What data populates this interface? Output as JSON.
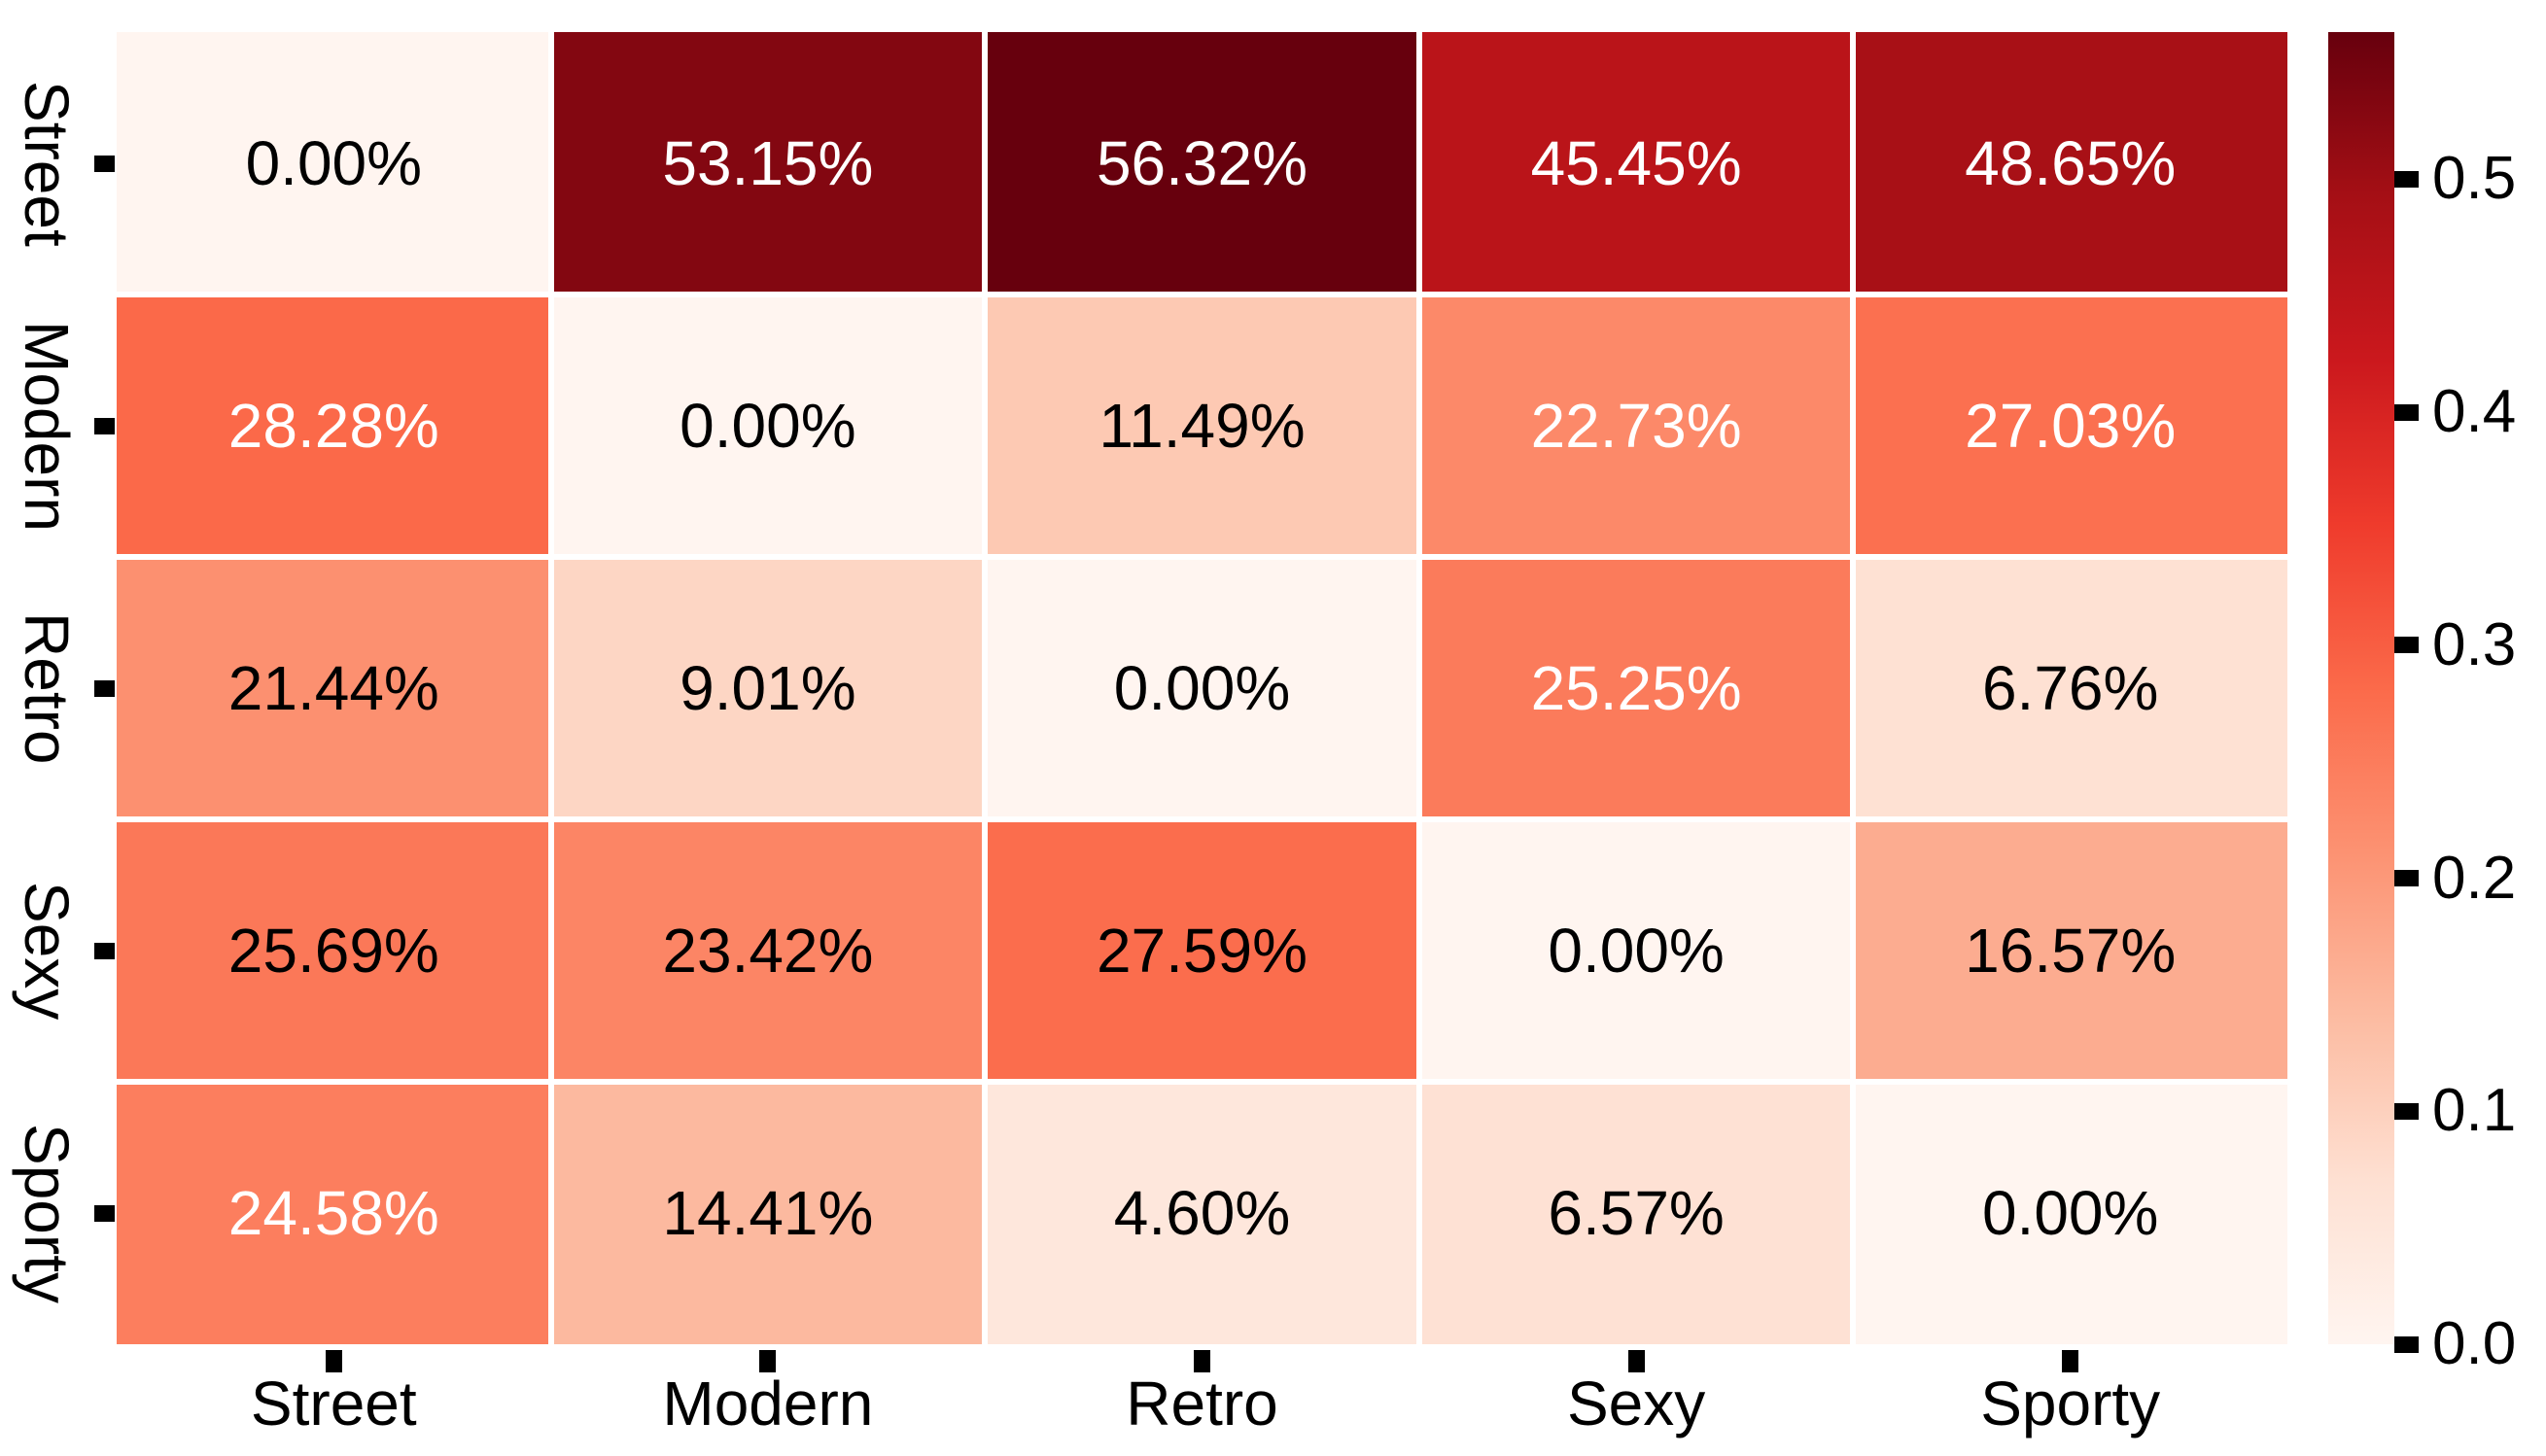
{
  "chart_data": {
    "type": "heatmap",
    "title": "",
    "x_categories": [
      "Street",
      "Modern",
      "Retro",
      "Sexy",
      "Sporty"
    ],
    "y_categories": [
      "Street",
      "Modern",
      "Retro",
      "Sexy",
      "Sporty"
    ],
    "labels": [
      [
        "0.00%",
        "53.15%",
        "56.32%",
        "45.45%",
        "48.65%"
      ],
      [
        "28.28%",
        "0.00%",
        "11.49%",
        "22.73%",
        "27.03%"
      ],
      [
        "21.44%",
        "9.01%",
        "0.00%",
        "25.25%",
        "6.76%"
      ],
      [
        "25.69%",
        "23.42%",
        "27.59%",
        "0.00%",
        "16.57%"
      ],
      [
        "24.58%",
        "14.41%",
        "4.60%",
        "6.57%",
        "0.00%"
      ]
    ],
    "values": [
      [
        0.0,
        0.5315,
        0.5632,
        0.4545,
        0.4865
      ],
      [
        0.2828,
        0.0,
        0.1149,
        0.2273,
        0.2703
      ],
      [
        0.2144,
        0.0901,
        0.0,
        0.2525,
        0.0676
      ],
      [
        0.2569,
        0.2342,
        0.2759,
        0.0,
        0.1657
      ],
      [
        0.2458,
        0.1441,
        0.046,
        0.0657,
        0.0
      ]
    ],
    "text_colors": [
      [
        "#000000",
        "#ffffff",
        "#ffffff",
        "#ffffff",
        "#ffffff"
      ],
      [
        "#ffffff",
        "#000000",
        "#000000",
        "#ffffff",
        "#ffffff"
      ],
      [
        "#000000",
        "#000000",
        "#000000",
        "#ffffff",
        "#000000"
      ],
      [
        "#000000",
        "#000000",
        "#000000",
        "#000000",
        "#000000"
      ],
      [
        "#ffffff",
        "#000000",
        "#000000",
        "#000000",
        "#000000"
      ]
    ],
    "vmin": 0.0,
    "vmax": 0.5632,
    "colormap": {
      "name": "Reds",
      "stops": [
        "#fff5f0",
        "#fee0d2",
        "#fcbba1",
        "#fc9272",
        "#fb6a4a",
        "#ef3b2c",
        "#cb181d",
        "#a50f15",
        "#67000d"
      ]
    },
    "colorbar": {
      "tick_labels": [
        "0.0",
        "0.1",
        "0.2",
        "0.3",
        "0.4",
        "0.5"
      ],
      "tick_values": [
        0.0,
        0.1,
        0.2,
        0.3,
        0.4,
        0.5
      ]
    },
    "grid_line_color": "#ffffff",
    "background_color": "#ffffff",
    "tick_color": "#000000"
  }
}
